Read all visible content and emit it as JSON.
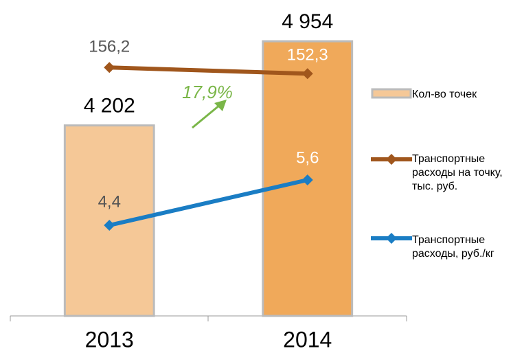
{
  "chart_data": {
    "type": "bar",
    "categories": [
      "2013",
      "2014"
    ],
    "series": [
      {
        "name": "Кол-во точек",
        "type": "bar",
        "color": "#f5c897",
        "colors": [
          "#f5c897",
          "#f0a95a"
        ],
        "values": [
          4202,
          4954
        ],
        "value_labels": [
          "4 202",
          "4 954"
        ],
        "ylim": [
          2500,
          5200
        ]
      },
      {
        "name": "Транспортные расходы на точку, тыс. руб.",
        "type": "line",
        "color": "#a0561c",
        "values": [
          156.2,
          152.3
        ],
        "value_labels": [
          "156,2",
          "152,3"
        ],
        "ylim": [
          0,
          190
        ]
      },
      {
        "name": "Транспортные расходы, руб./кг",
        "type": "line",
        "color": "#1a7dc4",
        "values": [
          4.4,
          5.6
        ],
        "value_labels": [
          "4,4",
          "5,6"
        ],
        "ylim": [
          2,
          10
        ]
      }
    ],
    "annotations": [
      {
        "text": "17,9%",
        "color": "#7ab648"
      }
    ]
  }
}
